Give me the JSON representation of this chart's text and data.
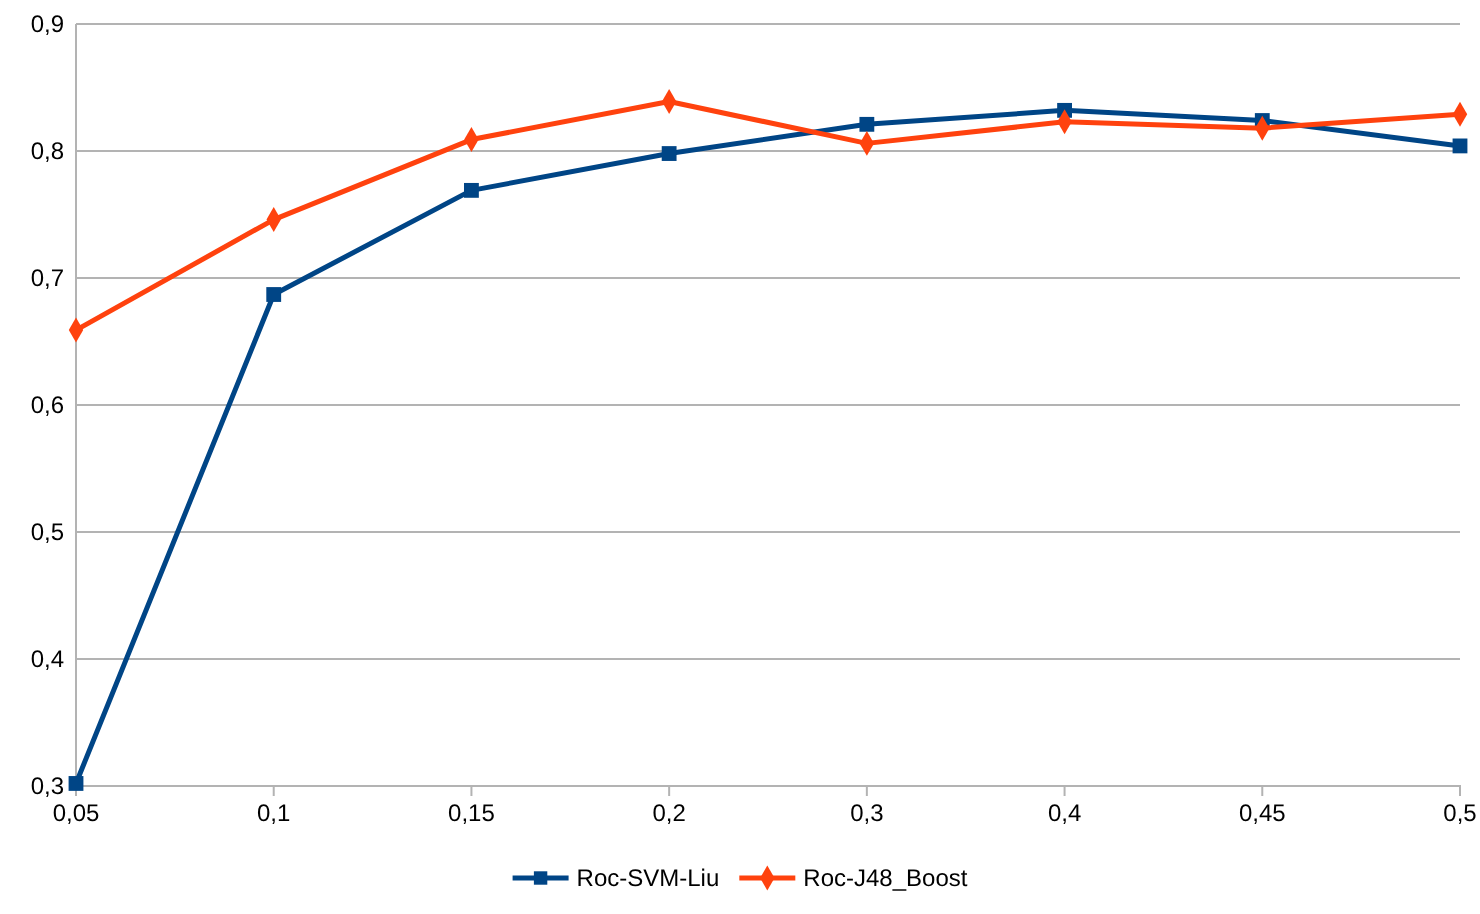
{
  "chart_data": {
    "type": "line",
    "categories": [
      "0,05",
      "0,1",
      "0,15",
      "0,2",
      "0,3",
      "0,4",
      "0,45",
      "0,5"
    ],
    "series": [
      {
        "name": "Roc-SVM-Liu",
        "color": "#004586",
        "marker": "square",
        "values": [
          0.302,
          0.687,
          0.769,
          0.798,
          0.821,
          0.832,
          0.824,
          0.804
        ]
      },
      {
        "name": "Roc-J48_Boost",
        "color": "#ff420e",
        "marker": "diamond",
        "values": [
          0.659,
          0.746,
          0.809,
          0.839,
          0.806,
          0.823,
          0.818,
          0.829
        ]
      }
    ],
    "ylim": [
      0.3,
      0.9
    ],
    "yticks": [
      {
        "value": 0.3,
        "label": "0,3"
      },
      {
        "value": 0.4,
        "label": "0,4"
      },
      {
        "value": 0.5,
        "label": "0,5"
      },
      {
        "value": 0.6,
        "label": "0,6"
      },
      {
        "value": 0.7,
        "label": "0,7"
      },
      {
        "value": 0.8,
        "label": "0,8"
      },
      {
        "value": 0.9,
        "label": "0,9"
      }
    ],
    "grid": "y",
    "legend": "bottom",
    "line_style": "solid"
  }
}
